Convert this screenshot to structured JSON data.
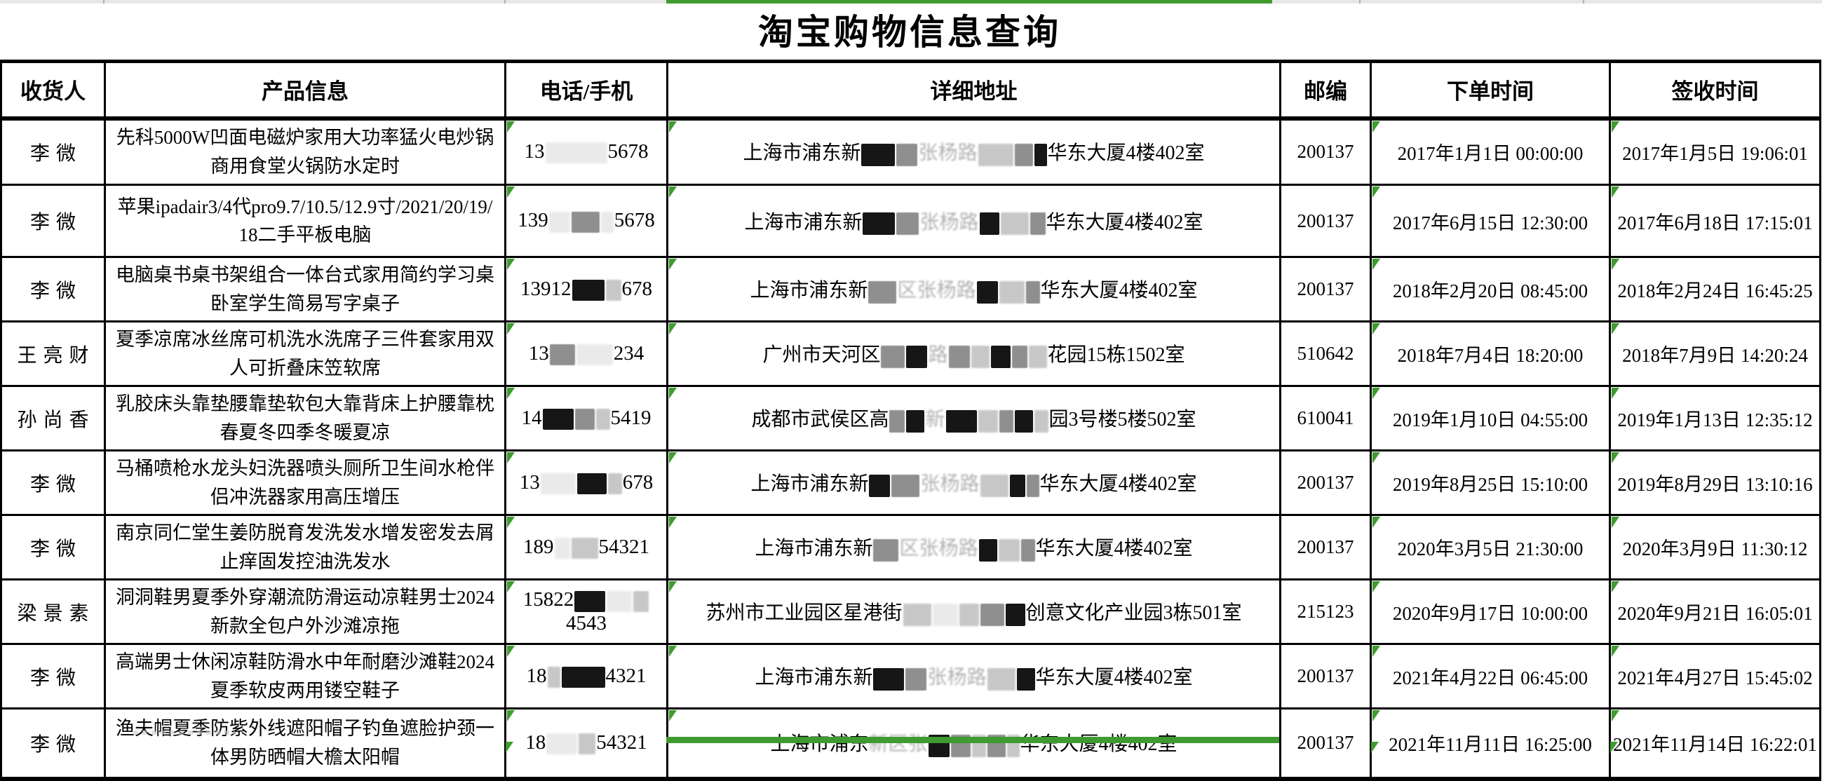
{
  "title": "淘宝购物信息查询",
  "columns": [
    "收货人",
    "产品信息",
    "电话/手机",
    "详细地址",
    "邮编",
    "下单时间",
    "签收时间"
  ],
  "colors": {
    "accent_green": "#3f9b2f",
    "strip_gray": "#e7e7e7",
    "grid_line": "#000000"
  },
  "rows": [
    {
      "recipient": "李微",
      "product": "先科5000W凹面电磁炉家用大功率猛火电炒锅商用食堂火锅防水定时",
      "phone": {
        "pre": "13",
        "blocks": [
          [
            "f",
            88
          ]
        ],
        "post": "5678"
      },
      "address": {
        "pre": "上海市浦东新",
        "blocks": [
          [
            "d",
            48
          ],
          [
            "g",
            30
          ],
          [
            "t",
            "张杨路"
          ],
          [
            "l",
            50
          ],
          [
            "g",
            26
          ],
          [
            "d",
            18
          ]
        ],
        "post": "华东大厦4楼402室"
      },
      "zip": "200137",
      "order_time": "2017年1月1日 00:00:00",
      "sign_time": "2017年1月5日 19:06:01"
    },
    {
      "recipient": "李微",
      "product": "苹果ipadair3/4代pro9.7/10.5/12.9寸/2021/20/19/18二手平板电脑",
      "phone": {
        "pre": "139",
        "blocks": [
          [
            "f",
            30
          ],
          [
            "g",
            40
          ],
          [
            "f",
            18
          ]
        ],
        "post": "5678"
      },
      "address": {
        "pre": "上海市浦东新",
        "blocks": [
          [
            "d",
            46
          ],
          [
            "g",
            32
          ],
          [
            "t",
            "张杨路"
          ],
          [
            "d",
            28
          ],
          [
            "l",
            40
          ],
          [
            "g",
            22
          ]
        ],
        "post": "华东大厦4楼402室"
      },
      "zip": "200137",
      "order_time": "2017年6月15日 12:30:00",
      "sign_time": "2017年6月18日 17:15:01"
    },
    {
      "recipient": "李微",
      "product": "电脑桌书桌书架组合一体台式家用简约学习桌卧室学生简易写字桌子",
      "phone": {
        "pre": "13912",
        "blocks": [
          [
            "d",
            46
          ],
          [
            "l",
            22
          ]
        ],
        "post": "678"
      },
      "address": {
        "pre": "上海市浦东新",
        "blocks": [
          [
            "g",
            40
          ],
          [
            "t",
            "区张杨路"
          ],
          [
            "d",
            30
          ],
          [
            "l",
            36
          ],
          [
            "g",
            20
          ]
        ],
        "post": "华东大厦4楼402室"
      },
      "zip": "200137",
      "order_time": "2018年2月20日 08:45:00",
      "sign_time": "2018年2月24日 16:45:25"
    },
    {
      "recipient": "王亮财",
      "product": "夏季凉席冰丝席可机洗水洗席子三件套家用双人可折叠床笠软席",
      "phone": {
        "pre": "13",
        "blocks": [
          [
            "g",
            36
          ],
          [
            "f",
            52
          ]
        ],
        "post": "234"
      },
      "address": {
        "pre": "广州市天河区",
        "blocks": [
          [
            "g",
            34
          ],
          [
            "d",
            30
          ],
          [
            "t",
            "路"
          ],
          [
            "g",
            30
          ],
          [
            "l",
            26
          ],
          [
            "d",
            28
          ],
          [
            "g",
            22
          ],
          [
            "l",
            26
          ]
        ],
        "post": "花园15栋1502室"
      },
      "zip": "510642",
      "order_time": "2018年7月4日 18:20:00",
      "sign_time": "2018年7月9日 14:20:24"
    },
    {
      "recipient": "孙尚香",
      "product": "乳胶床头靠垫腰靠垫软包大靠背床上护腰靠枕春夏冬四季冬暖夏凉",
      "phone": {
        "pre": "14",
        "blocks": [
          [
            "d",
            44
          ],
          [
            "g",
            28
          ],
          [
            "l",
            20
          ]
        ],
        "post": "5419"
      },
      "address": {
        "pre": "成都市武侯区高",
        "blocks": [
          [
            "g",
            22
          ],
          [
            "d",
            26
          ],
          [
            "t",
            "新"
          ],
          [
            "d",
            44
          ],
          [
            "l",
            28
          ],
          [
            "g",
            20
          ],
          [
            "d",
            26
          ],
          [
            "l",
            20
          ]
        ],
        "post": "园3号楼5楼502室"
      },
      "zip": "610041",
      "order_time": "2019年1月10日 04:55:00",
      "sign_time": "2019年1月13日 12:35:12"
    },
    {
      "recipient": "李微",
      "product": "马桶喷枪水龙头妇洗器喷头厕所卫生间水枪伴侣冲洗器家用高压增压",
      "phone": {
        "pre": "13",
        "blocks": [
          [
            "f",
            50
          ],
          [
            "d",
            42
          ],
          [
            "l",
            20
          ]
        ],
        "post": "678"
      },
      "address": {
        "pre": "上海市浦东新",
        "blocks": [
          [
            "d",
            30
          ],
          [
            "g",
            40
          ],
          [
            "t",
            "张杨路"
          ],
          [
            "l",
            40
          ],
          [
            "d",
            22
          ],
          [
            "g",
            18
          ]
        ],
        "post": "华东大厦4楼402室"
      },
      "zip": "200137",
      "order_time": "2019年8月25日 15:10:00",
      "sign_time": "2019年8月29日 13:10:16"
    },
    {
      "recipient": "李微",
      "product": "南京同仁堂生姜防脱育发洗发水增发密发去屑止痒固发控油洗发水",
      "phone": {
        "pre": "189",
        "blocks": [
          [
            "f",
            22
          ],
          [
            "l",
            38
          ]
        ],
        "post": "54321"
      },
      "address": {
        "pre": "上海市浦东新",
        "blocks": [
          [
            "g",
            36
          ],
          [
            "t",
            "区张杨路"
          ],
          [
            "d",
            26
          ],
          [
            "l",
            30
          ],
          [
            "g",
            20
          ]
        ],
        "post": "华东大厦4楼402室"
      },
      "zip": "200137",
      "order_time": "2020年3月5日 21:30:00",
      "sign_time": "2020年3月9日 11:30:12"
    },
    {
      "recipient": "梁景素",
      "product": "洞洞鞋男夏季外穿潮流防滑运动凉鞋男士2024新款全包户外沙滩凉拖",
      "phone": {
        "pre": "15822",
        "blocks": [
          [
            "d",
            44
          ],
          [
            "f",
            36
          ],
          [
            "l",
            22
          ]
        ],
        "post": "4543"
      },
      "address": {
        "pre": "苏州市工业园区星港街",
        "blocks": [
          [
            "l",
            40
          ],
          [
            "f",
            36
          ],
          [
            "l",
            28
          ],
          [
            "g",
            34
          ],
          [
            "d",
            28
          ]
        ],
        "post": "创意文化产业园3栋501室"
      },
      "zip": "215123",
      "order_time": "2020年9月17日 10:00:00",
      "sign_time": "2020年9月21日 16:05:01"
    },
    {
      "recipient": "李微",
      "product": "高端男士休闲凉鞋防滑水中年耐磨沙滩鞋2024夏季软皮两用镂空鞋子",
      "phone": {
        "pre": "18",
        "blocks": [
          [
            "l",
            18
          ],
          [
            "d",
            62
          ]
        ],
        "post": "4321"
      },
      "address": {
        "pre": "上海市浦东新",
        "blocks": [
          [
            "d",
            44
          ],
          [
            "g",
            30
          ],
          [
            "t",
            "张杨路"
          ],
          [
            "l",
            40
          ],
          [
            "d",
            26
          ]
        ],
        "post": "华东大厦4楼402室"
      },
      "zip": "200137",
      "order_time": "2021年4月22日 06:45:00",
      "sign_time": "2021年4月27日 15:45:02"
    },
    {
      "recipient": "李微",
      "product": "渔夫帽夏季防紫外线遮阳帽子钓鱼遮脸护颈一体男防晒帽大檐太阳帽",
      "phone": {
        "pre": "18",
        "blocks": [
          [
            "f",
            44
          ],
          [
            "l",
            24
          ]
        ],
        "post": "54321"
      },
      "address": {
        "pre": "上海市浦东",
        "blocks": [
          [
            "t",
            "新区张"
          ],
          [
            "d",
            30
          ],
          [
            "g",
            28
          ],
          [
            "l",
            20
          ],
          [
            "g",
            26
          ],
          [
            "l",
            18
          ]
        ],
        "post": "华东大厦4楼402室"
      },
      "zip": "200137",
      "order_time": "2021年11月11日 16:25:00",
      "sign_time": "2021年11月14日 16:22:01"
    }
  ]
}
